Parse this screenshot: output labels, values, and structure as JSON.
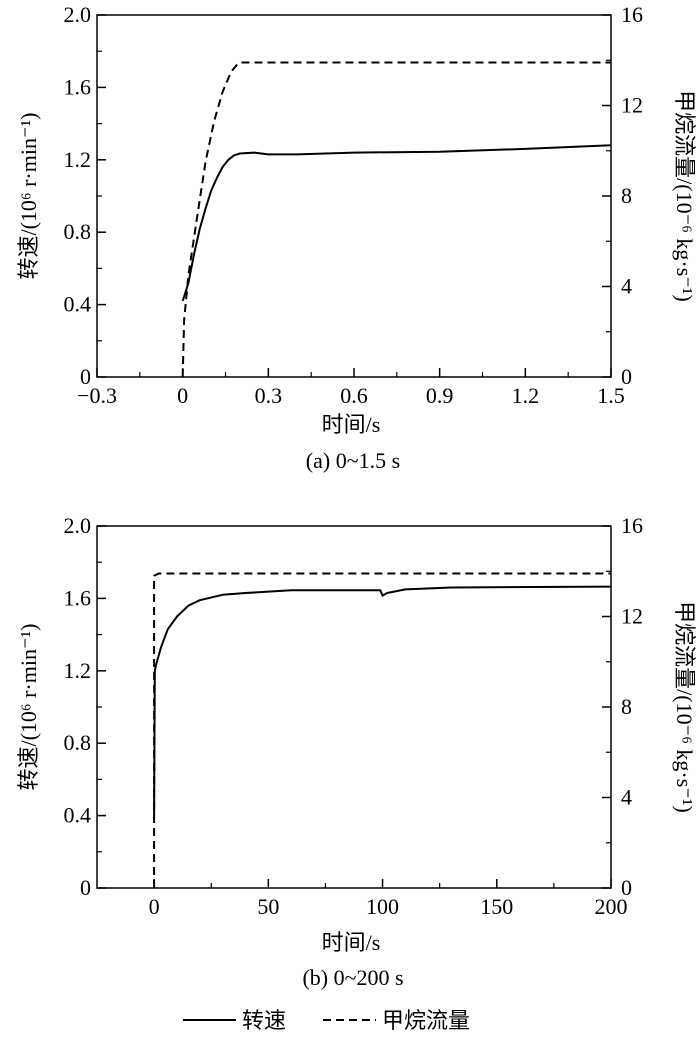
{
  "legend": {
    "speed_label": "转速",
    "flow_label": "甲烷流量"
  },
  "chart_data": [
    {
      "type": "line",
      "caption": "(a) 0~1.5 s",
      "xlabel": "时间/s",
      "ylabel_left": "转速/(10⁶ r·min⁻¹)",
      "ylabel_right": "甲烷流量/(10⁻⁶ kg·s⁻¹)",
      "xlim": [
        -0.3,
        1.5
      ],
      "ylim_left": [
        0,
        2.0
      ],
      "ylim_right": [
        0,
        16
      ],
      "x_ticks": [
        -0.3,
        0,
        0.3,
        0.6,
        0.9,
        1.2,
        1.5
      ],
      "x_tick_labels": [
        "−0.3",
        "0",
        "0.3",
        "0.6",
        "0.9",
        "1.2",
        "1.5"
      ],
      "y_left_ticks": [
        0,
        0.4,
        0.8,
        1.2,
        1.6,
        2.0
      ],
      "y_left_tick_labels": [
        "0",
        "0.4",
        "0.8",
        "1.2",
        "1.6",
        "2.0"
      ],
      "y_right_ticks": [
        0,
        4,
        8,
        12,
        16
      ],
      "y_right_tick_labels": [
        "0",
        "4",
        "8",
        "12",
        "16"
      ],
      "series": [
        {
          "name": "转速",
          "axis": "left",
          "style": "solid",
          "points": [
            [
              0,
              0.42
            ],
            [
              0.02,
              0.52
            ],
            [
              0.04,
              0.68
            ],
            [
              0.06,
              0.82
            ],
            [
              0.08,
              0.93
            ],
            [
              0.1,
              1.03
            ],
            [
              0.12,
              1.1
            ],
            [
              0.14,
              1.16
            ],
            [
              0.16,
              1.2
            ],
            [
              0.18,
              1.225
            ],
            [
              0.2,
              1.235
            ],
            [
              0.25,
              1.24
            ],
            [
              0.3,
              1.23
            ],
            [
              0.4,
              1.23
            ],
            [
              0.6,
              1.24
            ],
            [
              0.9,
              1.245
            ],
            [
              1.2,
              1.26
            ],
            [
              1.5,
              1.28
            ]
          ]
        },
        {
          "name": "甲烷流量",
          "axis": "right",
          "style": "dashed",
          "points": [
            [
              0,
              0
            ],
            [
              0.005,
              2.5
            ],
            [
              0.02,
              4.5
            ],
            [
              0.05,
              7.0
            ],
            [
              0.08,
              9.5
            ],
            [
              0.11,
              11.3
            ],
            [
              0.14,
              12.6
            ],
            [
              0.17,
              13.5
            ],
            [
              0.19,
              13.8
            ],
            [
              0.2,
              13.9
            ],
            [
              1.5,
              13.9
            ]
          ]
        }
      ]
    },
    {
      "type": "line",
      "caption": "(b) 0~200 s",
      "xlabel": "时间/s",
      "ylabel_left": "转速/(10⁶ r·min⁻¹)",
      "ylabel_right": "甲烷流量/(10⁻⁶ kg·s⁻¹)",
      "xlim": [
        -25,
        200
      ],
      "ylim_left": [
        0,
        2.0
      ],
      "ylim_right": [
        0,
        16
      ],
      "x_ticks": [
        0,
        50,
        100,
        150,
        200
      ],
      "x_tick_labels": [
        "0",
        "50",
        "100",
        "150",
        "200"
      ],
      "y_left_ticks": [
        0,
        0.4,
        0.8,
        1.2,
        1.6,
        2.0
      ],
      "y_left_tick_labels": [
        "0",
        "0.4",
        "0.8",
        "1.2",
        "1.6",
        "2.0"
      ],
      "y_right_ticks": [
        0,
        4,
        8,
        12,
        16
      ],
      "y_right_tick_labels": [
        "0",
        "4",
        "8",
        "12",
        "16"
      ],
      "series": [
        {
          "name": "转速",
          "axis": "left",
          "style": "solid",
          "points": [
            [
              0,
              0.4
            ],
            [
              0.3,
              1.2
            ],
            [
              1,
              1.24
            ],
            [
              3,
              1.33
            ],
            [
              6,
              1.43
            ],
            [
              10,
              1.5
            ],
            [
              15,
              1.56
            ],
            [
              20,
              1.59
            ],
            [
              30,
              1.62
            ],
            [
              40,
              1.63
            ],
            [
              60,
              1.645
            ],
            [
              99,
              1.645
            ],
            [
              100,
              1.615
            ],
            [
              102,
              1.63
            ],
            [
              110,
              1.65
            ],
            [
              130,
              1.66
            ],
            [
              200,
              1.665
            ]
          ]
        },
        {
          "name": "甲烷流量",
          "axis": "right",
          "style": "dashed",
          "points": [
            [
              0,
              0
            ],
            [
              0,
              13.8
            ],
            [
              2,
              13.9
            ],
            [
              200,
              13.9
            ]
          ]
        }
      ]
    }
  ]
}
